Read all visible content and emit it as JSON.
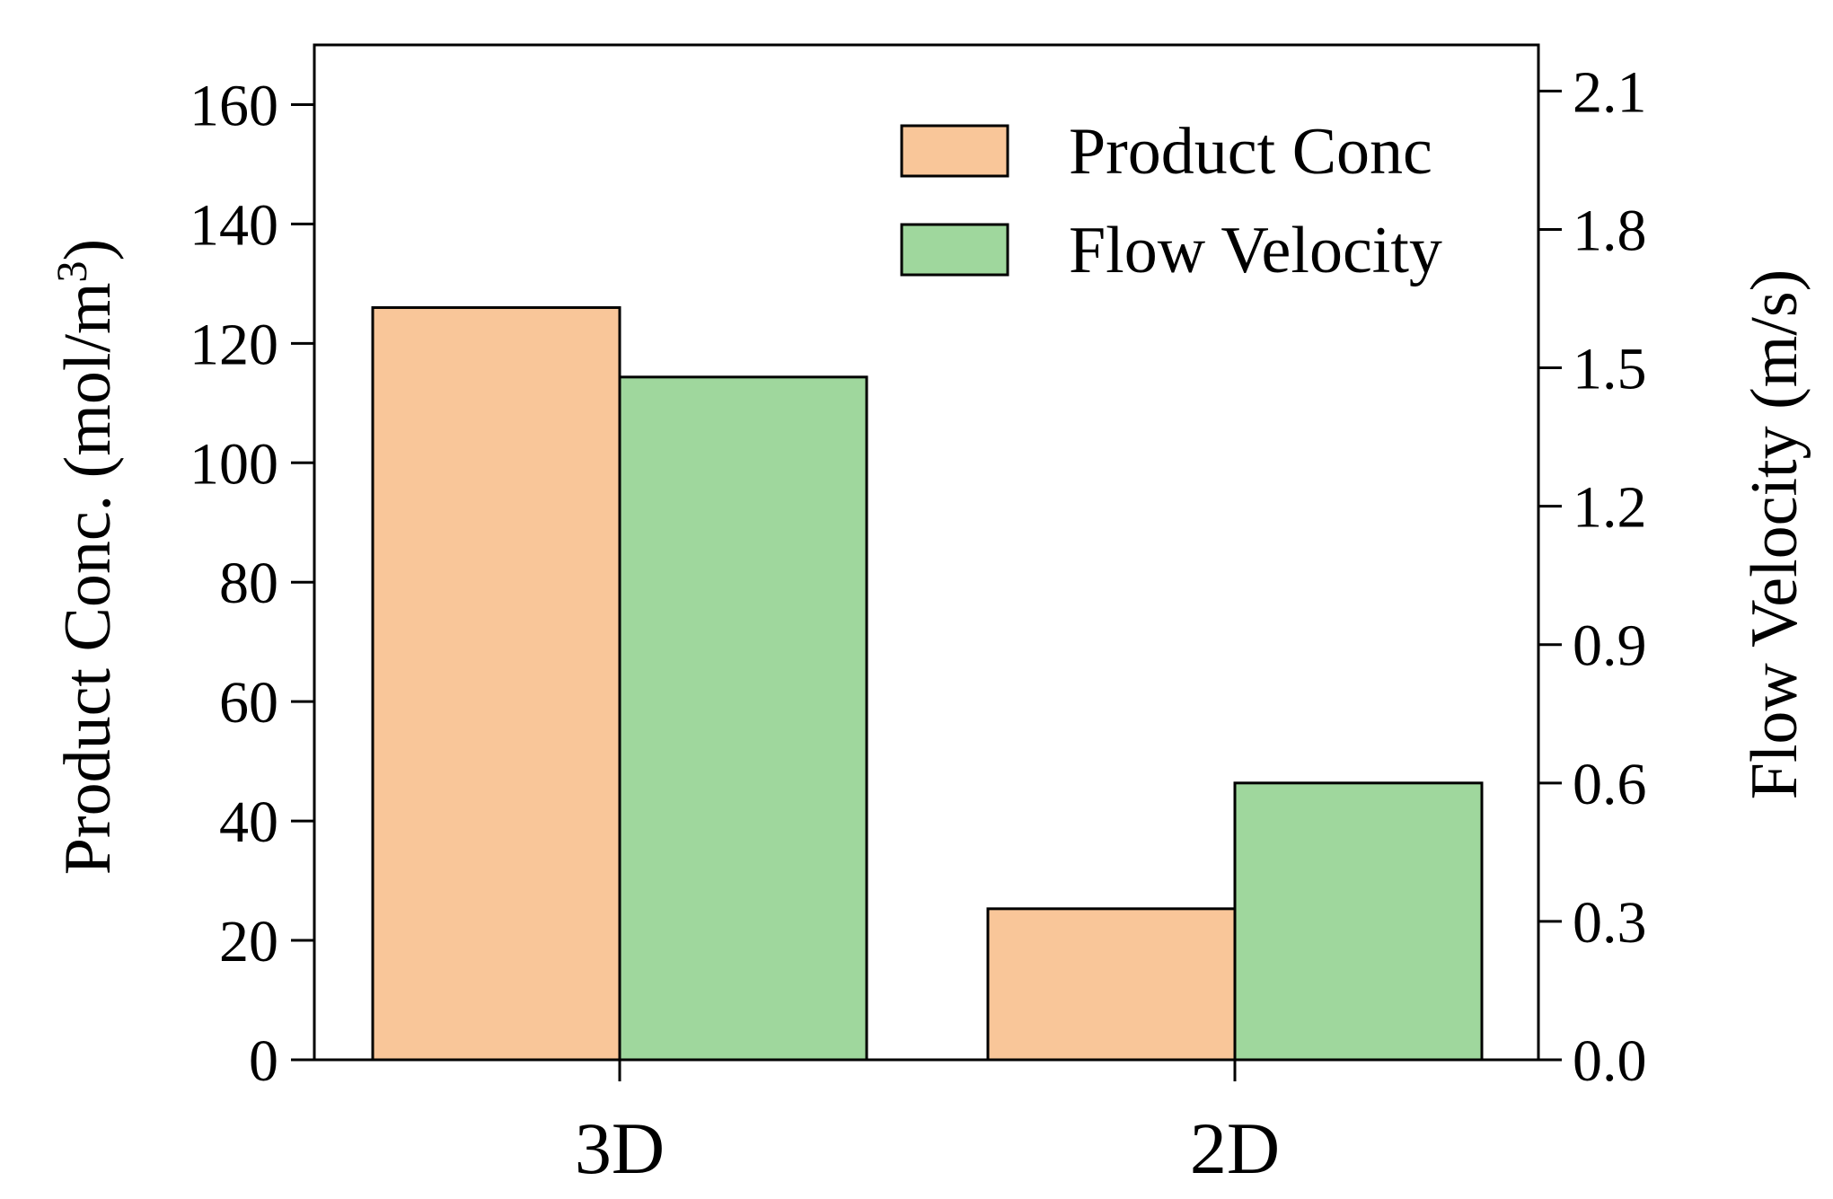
{
  "chart_data": {
    "type": "bar",
    "categories": [
      "3D",
      "2D"
    ],
    "series": [
      {
        "name": "Product Conc",
        "axis": "left",
        "color": "#F9C699",
        "values": [
          126,
          25.3
        ]
      },
      {
        "name": "Flow Velocity",
        "axis": "right",
        "color": "#9FD79D",
        "values": [
          1.48,
          0.6
        ]
      }
    ],
    "y_left": {
      "label_prefix": "Product Conc. (mol/m",
      "label_sup": "3",
      "label_suffix": ")",
      "ylim": [
        0,
        170
      ],
      "ticks": [
        0,
        20,
        40,
        60,
        80,
        100,
        120,
        140,
        160
      ],
      "tick_labels": [
        "0",
        "20",
        "40",
        "60",
        "80",
        "100",
        "120",
        "140",
        "160"
      ]
    },
    "y_right": {
      "label": "Flow Velocity (m/s)",
      "ylim": [
        0,
        2.2
      ],
      "ticks": [
        0,
        0.3,
        0.6,
        0.9,
        1.2,
        1.5,
        1.8,
        2.1
      ],
      "tick_labels": [
        "0.0",
        "0.3",
        "0.6",
        "0.9",
        "1.2",
        "1.5",
        "1.8",
        "2.1"
      ]
    },
    "legend": {
      "position": "top-right",
      "entries": [
        "Product Conc",
        "Flow Velocity"
      ]
    },
    "grid": false
  }
}
